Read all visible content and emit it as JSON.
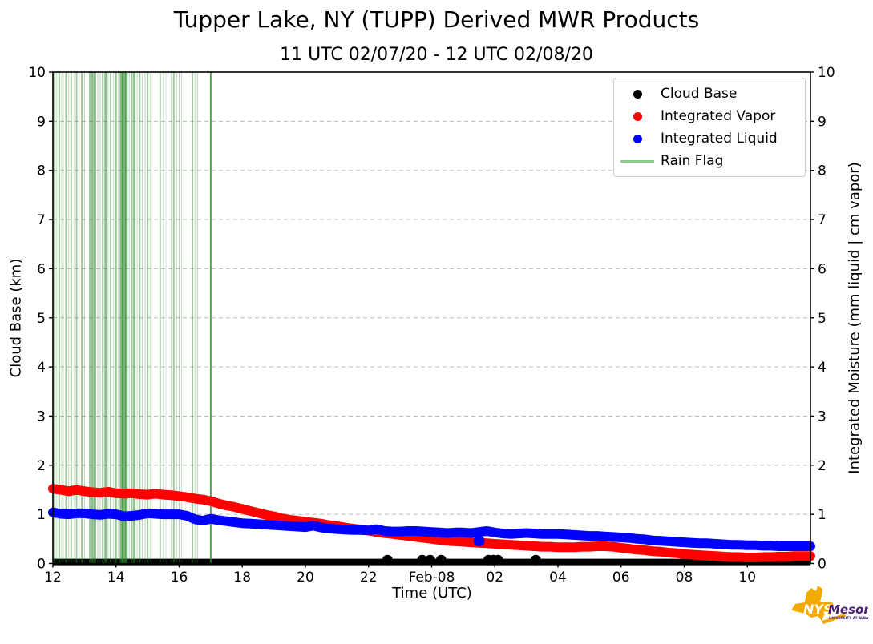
{
  "header": {
    "title": "Tupper Lake, NY (TUPP) Derived MWR Products",
    "subtitle": "11 UTC 02/07/20 - 12 UTC 02/08/20"
  },
  "axes": {
    "x_label": "Time (UTC)",
    "y_left_label": "Cloud Base (km)",
    "y_right_label": "Integrated Moisture (mm liquid | cm vapor)"
  },
  "legend": {
    "items": [
      {
        "label": "Cloud Base",
        "marker": "dot",
        "color": "#000000"
      },
      {
        "label": "Integrated Vapor",
        "marker": "dot",
        "color": "#ff0000"
      },
      {
        "label": "Integrated Liquid",
        "marker": "dot",
        "color": "#0000ff"
      },
      {
        "label": "Rain Flag",
        "marker": "line",
        "color": "#8fcc8f"
      }
    ]
  },
  "logo": {
    "nys": "NYS",
    "mesonet": "Mesonet",
    "tagline": "UNIVERSITY AT ALBANY",
    "state_color": "#F2A900",
    "text_color": "#4B2077"
  },
  "chart_data": {
    "type": "scatter",
    "title": "Tupper Lake, NY (TUPP) Derived MWR Products",
    "subtitle": "11 UTC 02/07/20 - 12 UTC 02/08/20",
    "xlabel": "Time (UTC)",
    "ylabel_left": "Cloud Base (km)",
    "ylabel_right": "Integrated Moisture (mm liquid | cm vapor)",
    "x_unit": "hours UTC from 12:00 02/07/20 (24 = 00 UTC Feb-08)",
    "xlim": [
      12,
      36
    ],
    "ylim": [
      0,
      10
    ],
    "grid": "horizontal dashed at integers 1-9",
    "legend_position": "upper right",
    "x_ticks": [
      {
        "t": 12,
        "label": "12"
      },
      {
        "t": 14,
        "label": "14"
      },
      {
        "t": 16,
        "label": "16"
      },
      {
        "t": 18,
        "label": "18"
      },
      {
        "t": 20,
        "label": "20"
      },
      {
        "t": 22,
        "label": "22"
      },
      {
        "t": 24,
        "label": "Feb-08"
      },
      {
        "t": 26,
        "label": "02"
      },
      {
        "t": 28,
        "label": "04"
      },
      {
        "t": 30,
        "label": "06"
      },
      {
        "t": 32,
        "label": "08"
      },
      {
        "t": 34,
        "label": "10"
      }
    ],
    "y_ticks": [
      0,
      1,
      2,
      3,
      4,
      5,
      6,
      7,
      8,
      9,
      10
    ],
    "series": [
      {
        "name": "Integrated Vapor",
        "color": "#ff0000",
        "style": "thick dotted line",
        "x_start": 12,
        "x_step": 0.25,
        "y": [
          1.52,
          1.5,
          1.47,
          1.5,
          1.47,
          1.45,
          1.44,
          1.46,
          1.43,
          1.42,
          1.43,
          1.41,
          1.4,
          1.42,
          1.4,
          1.39,
          1.37,
          1.35,
          1.32,
          1.3,
          1.27,
          1.22,
          1.18,
          1.15,
          1.11,
          1.07,
          1.03,
          0.99,
          0.96,
          0.92,
          0.89,
          0.87,
          0.85,
          0.83,
          0.81,
          0.78,
          0.76,
          0.73,
          0.71,
          0.69,
          0.67,
          0.64,
          0.62,
          0.6,
          0.58,
          0.56,
          0.54,
          0.52,
          0.5,
          0.48,
          0.46,
          0.45,
          0.44,
          0.43,
          0.42,
          0.41,
          0.4,
          0.39,
          0.38,
          0.37,
          0.36,
          0.35,
          0.34,
          0.34,
          0.33,
          0.33,
          0.33,
          0.34,
          0.34,
          0.35,
          0.35,
          0.34,
          0.32,
          0.3,
          0.28,
          0.27,
          0.25,
          0.24,
          0.22,
          0.21,
          0.19,
          0.18,
          0.17,
          0.16,
          0.15,
          0.14,
          0.13,
          0.13,
          0.12,
          0.12,
          0.13,
          0.13,
          0.14,
          0.14,
          0.15,
          0.15,
          0.15
        ]
      },
      {
        "name": "Integrated Liquid",
        "color": "#0000ff",
        "style": "thick dotted line",
        "x_start": 12,
        "x_step": 0.25,
        "y": [
          1.04,
          1.01,
          1.0,
          1.02,
          1.02,
          1.0,
          0.99,
          1.01,
          1.0,
          0.96,
          0.97,
          0.99,
          1.02,
          1.01,
          1.0,
          1.0,
          1.0,
          0.97,
          0.9,
          0.87,
          0.91,
          0.88,
          0.86,
          0.84,
          0.82,
          0.81,
          0.8,
          0.79,
          0.78,
          0.77,
          0.76,
          0.75,
          0.74,
          0.77,
          0.73,
          0.71,
          0.7,
          0.69,
          0.68,
          0.68,
          0.67,
          0.7,
          0.66,
          0.65,
          0.65,
          0.66,
          0.66,
          0.65,
          0.64,
          0.63,
          0.62,
          0.63,
          0.63,
          0.62,
          0.64,
          0.66,
          0.63,
          0.61,
          0.6,
          0.61,
          0.62,
          0.61,
          0.6,
          0.6,
          0.6,
          0.59,
          0.58,
          0.57,
          0.56,
          0.56,
          0.55,
          0.54,
          0.53,
          0.52,
          0.5,
          0.49,
          0.47,
          0.46,
          0.45,
          0.44,
          0.43,
          0.42,
          0.41,
          0.41,
          0.4,
          0.39,
          0.38,
          0.38,
          0.37,
          0.37,
          0.36,
          0.36,
          0.35,
          0.35,
          0.35,
          0.35,
          0.35
        ]
      }
    ],
    "liquid_outlier": {
      "x": 25.5,
      "y": 0.46
    },
    "cloud_base": {
      "band": {
        "x_start": 12,
        "x_end": 36,
        "value": 0.03,
        "note": "continuous cloud base at ~0 km"
      },
      "points_x": [
        22.6,
        23.7,
        23.95,
        24.3,
        25.8,
        25.95,
        26.1,
        27.3
      ],
      "points_y": [
        0.07,
        0.07,
        0.07,
        0.07,
        0.07,
        0.07,
        0.07,
        0.07
      ],
      "color": "#000000"
    },
    "rain_flags": {
      "color": "#2e8b2e",
      "x_start": 12.0,
      "x_end": 17.0,
      "lines": [
        {
          "t": 12.02,
          "o": 0.5,
          "w": 2
        },
        {
          "t": 12.07,
          "o": 0.3,
          "w": 1
        },
        {
          "t": 12.12,
          "o": 0.25,
          "w": 1
        },
        {
          "t": 12.2,
          "o": 0.45,
          "w": 2
        },
        {
          "t": 12.28,
          "o": 0.3,
          "w": 1
        },
        {
          "t": 12.33,
          "o": 0.25,
          "w": 1
        },
        {
          "t": 12.42,
          "o": 0.5,
          "w": 2
        },
        {
          "t": 12.5,
          "o": 0.3,
          "w": 1
        },
        {
          "t": 12.58,
          "o": 0.35,
          "w": 2
        },
        {
          "t": 12.67,
          "o": 0.25,
          "w": 1
        },
        {
          "t": 12.75,
          "o": 0.45,
          "w": 2
        },
        {
          "t": 12.83,
          "o": 0.3,
          "w": 1
        },
        {
          "t": 12.92,
          "o": 0.5,
          "w": 2
        },
        {
          "t": 13.0,
          "o": 0.35,
          "w": 1
        },
        {
          "t": 13.08,
          "o": 0.3,
          "w": 1
        },
        {
          "t": 13.17,
          "o": 0.5,
          "w": 2
        },
        {
          "t": 13.25,
          "o": 0.55,
          "w": 3
        },
        {
          "t": 13.33,
          "o": 0.6,
          "w": 3
        },
        {
          "t": 13.42,
          "o": 0.35,
          "w": 1
        },
        {
          "t": 13.5,
          "o": 0.3,
          "w": 1
        },
        {
          "t": 13.58,
          "o": 0.5,
          "w": 2
        },
        {
          "t": 13.67,
          "o": 0.55,
          "w": 3
        },
        {
          "t": 13.75,
          "o": 0.3,
          "w": 1
        },
        {
          "t": 13.83,
          "o": 0.45,
          "w": 2
        },
        {
          "t": 13.92,
          "o": 0.3,
          "w": 1
        },
        {
          "t": 14.0,
          "o": 0.5,
          "w": 2
        },
        {
          "t": 14.08,
          "o": 0.35,
          "w": 1
        },
        {
          "t": 14.17,
          "o": 0.6,
          "w": 4
        },
        {
          "t": 14.25,
          "o": 0.65,
          "w": 5
        },
        {
          "t": 14.33,
          "o": 0.6,
          "w": 3
        },
        {
          "t": 14.42,
          "o": 0.35,
          "w": 1
        },
        {
          "t": 14.5,
          "o": 0.5,
          "w": 2
        },
        {
          "t": 14.58,
          "o": 0.55,
          "w": 3
        },
        {
          "t": 14.67,
          "o": 0.3,
          "w": 1
        },
        {
          "t": 14.75,
          "o": 0.45,
          "w": 2
        },
        {
          "t": 14.83,
          "o": 0.3,
          "w": 1
        },
        {
          "t": 14.92,
          "o": 0.35,
          "w": 1
        },
        {
          "t": 15.0,
          "o": 0.5,
          "w": 2
        },
        {
          "t": 15.08,
          "o": 0.3,
          "w": 1
        },
        {
          "t": 15.4,
          "o": 0.35,
          "w": 2
        },
        {
          "t": 15.5,
          "o": 0.3,
          "w": 1
        },
        {
          "t": 15.58,
          "o": 0.25,
          "w": 1
        },
        {
          "t": 15.75,
          "o": 0.3,
          "w": 1
        },
        {
          "t": 15.83,
          "o": 0.45,
          "w": 2
        },
        {
          "t": 15.92,
          "o": 0.3,
          "w": 1
        },
        {
          "t": 16.0,
          "o": 0.35,
          "w": 1
        },
        {
          "t": 16.08,
          "o": 0.3,
          "w": 1
        },
        {
          "t": 16.42,
          "o": 0.45,
          "w": 2
        },
        {
          "t": 16.5,
          "o": 0.3,
          "w": 1
        },
        {
          "t": 16.58,
          "o": 0.35,
          "w": 1
        },
        {
          "t": 17.0,
          "o": 0.8,
          "w": 2
        }
      ]
    }
  }
}
